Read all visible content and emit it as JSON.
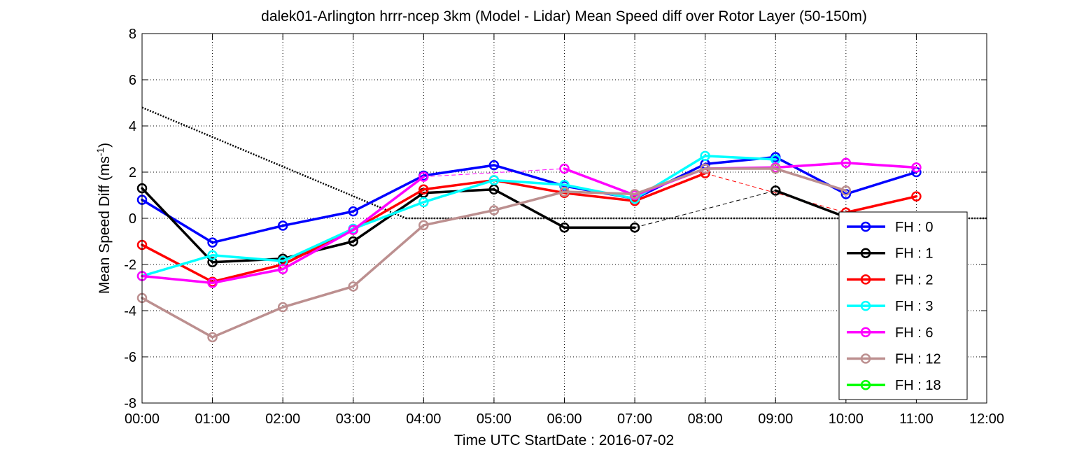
{
  "chart_data": {
    "type": "line",
    "title": "dalek01-Arlington hrrr-ncep 3km (Model - Lidar) Mean Speed diff over Rotor Layer (50-150m)",
    "xlabel": "Time UTC    StartDate : 2016-07-02",
    "ylabel": "Mean Speed Diff (ms",
    "ylabel_sup": "-1",
    "ylabel_end": ")",
    "xlim": [
      0,
      12
    ],
    "ylim": [
      -8,
      8
    ],
    "x_ticks": [
      0,
      1,
      2,
      3,
      4,
      5,
      6,
      7,
      8,
      9,
      10,
      11,
      12
    ],
    "x_tick_labels": [
      "00:00",
      "01:00",
      "02:00",
      "03:00",
      "04:00",
      "05:00",
      "06:00",
      "07:00",
      "08:00",
      "09:00",
      "10:00",
      "11:00",
      "12:00"
    ],
    "y_ticks": [
      -8,
      -6,
      -4,
      -2,
      0,
      2,
      4,
      6,
      8
    ],
    "y_tick_labels": [
      "-8",
      "-6",
      "-4",
      "-2",
      "0",
      "2",
      "4",
      "6",
      "8"
    ],
    "grid": true,
    "legend_position": "bottom-right",
    "series": [
      {
        "name": "FH : 0",
        "color": "#0000ff",
        "x": [
          0,
          1,
          2,
          3,
          4,
          5,
          6,
          7,
          8,
          9,
          10,
          11
        ],
        "y": [
          0.8,
          -1.05,
          -0.32,
          0.3,
          1.85,
          2.3,
          1.4,
          0.85,
          2.35,
          2.65,
          1.05,
          2.0
        ]
      },
      {
        "name": "FH : 1",
        "color": "#000000",
        "x": [
          0,
          1,
          2,
          3,
          4,
          5,
          6,
          7,
          9,
          10
        ],
        "y": [
          1.3,
          -1.9,
          -1.75,
          -1.0,
          1.1,
          1.25,
          -0.4,
          -0.4,
          1.2,
          0.05
        ]
      },
      {
        "name": "FH : 2",
        "color": "#ff0000",
        "x": [
          0,
          1,
          2,
          3,
          4,
          5,
          6,
          7,
          8,
          10,
          11
        ],
        "y": [
          -1.15,
          -2.75,
          -2.0,
          -0.5,
          1.25,
          1.65,
          1.1,
          0.75,
          1.95,
          0.25,
          0.95
        ]
      },
      {
        "name": "FH : 3",
        "color": "#00ffff",
        "x": [
          0,
          1,
          2,
          3,
          4,
          5,
          6,
          7,
          8,
          9
        ],
        "y": [
          -2.5,
          -1.6,
          -1.85,
          -0.45,
          0.7,
          1.65,
          1.45,
          0.85,
          2.7,
          2.55
        ]
      },
      {
        "name": "FH : 6",
        "color": "#ff00ff",
        "x": [
          0,
          1,
          2,
          3,
          4,
          6,
          7,
          8,
          9,
          10,
          11
        ],
        "y": [
          -2.5,
          -2.8,
          -2.2,
          -0.5,
          1.8,
          2.15,
          1.0,
          2.15,
          2.2,
          2.4,
          2.2
        ]
      },
      {
        "name": "FH : 12",
        "color": "#bc8f8f",
        "x": [
          0,
          1,
          2,
          3,
          4,
          5,
          6,
          7,
          8,
          9,
          10
        ],
        "y": [
          -3.45,
          -5.15,
          -3.85,
          -2.95,
          -0.3,
          0.35,
          1.15,
          1.05,
          2.15,
          2.15,
          1.2
        ]
      },
      {
        "name": "FH : 18",
        "color": "#00ff00",
        "x": [],
        "y": []
      }
    ],
    "dotted_line": {
      "x": [
        0,
        3.75
      ],
      "y": [
        4.8,
        0
      ]
    }
  }
}
